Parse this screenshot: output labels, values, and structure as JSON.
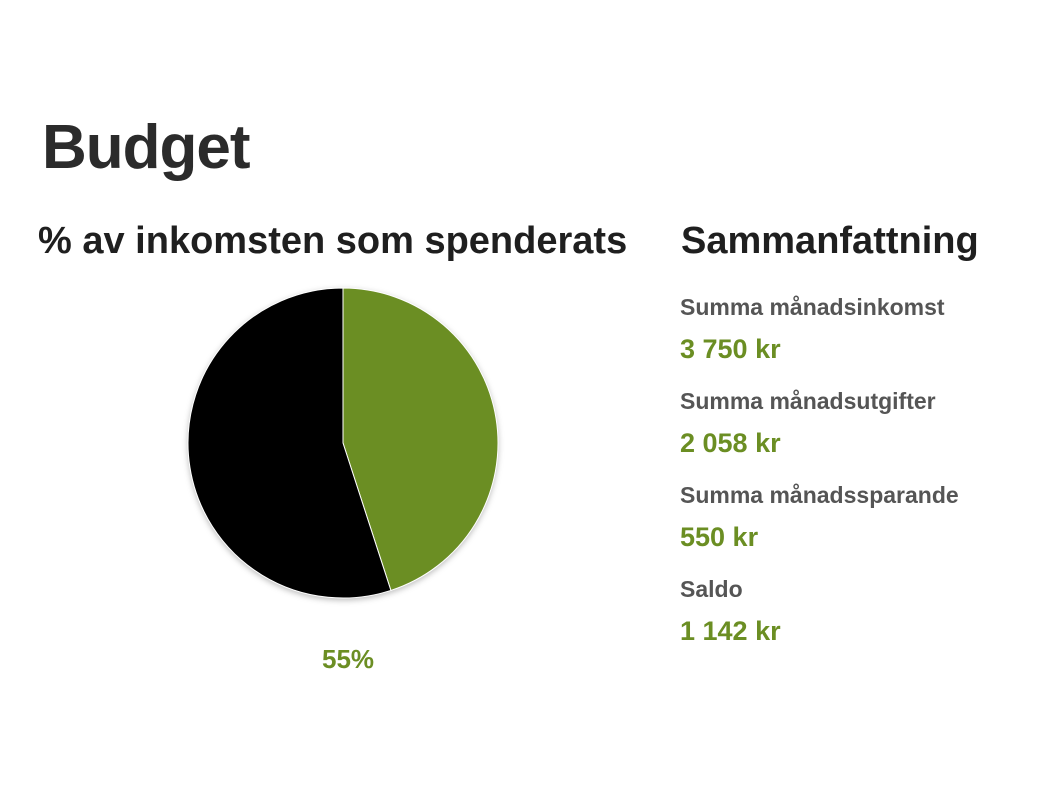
{
  "title": "Budget",
  "chart_heading": "% av inkomsten som spenderats",
  "summary_heading": "Sammanfattning",
  "chart_data": {
    "type": "pie",
    "title": "% av inkomsten som spenderats",
    "slices": [
      {
        "value": 55,
        "color": "#000000"
      },
      {
        "value": 45,
        "color": "#6b8e23"
      }
    ],
    "data_label": "55%"
  },
  "summary": {
    "items": [
      {
        "label": "Summa månadsinkomst",
        "value": "3 750 kr"
      },
      {
        "label": "Summa månadsutgifter",
        "value": "2 058 kr"
      },
      {
        "label": "Summa månadssparande",
        "value": "550 kr"
      },
      {
        "label": "Saldo",
        "value": "1 142 kr"
      }
    ]
  },
  "colors": {
    "accent": "#6b8e23",
    "heading": "#1f1f1f",
    "label": "#555555"
  }
}
